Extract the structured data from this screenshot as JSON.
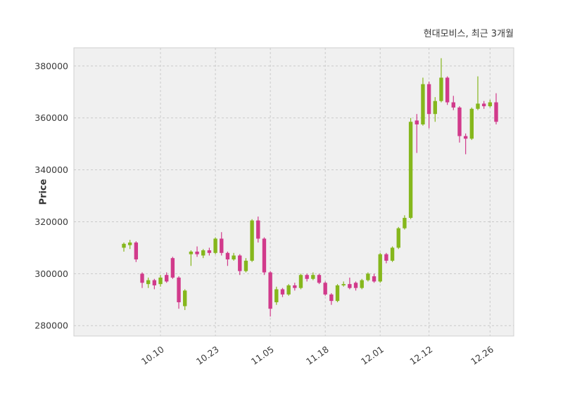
{
  "header": {
    "title": "현대모비스, 최근 3개월"
  },
  "chart_data": {
    "type": "candlestick",
    "title": "현대모비스, 최근 3개월",
    "ylabel": "Price",
    "ylim": [
      276000,
      387000
    ],
    "y_ticks": [
      280000,
      300000,
      320000,
      340000,
      360000,
      380000
    ],
    "x_ticks": [
      {
        "label": "10.10",
        "index": 6
      },
      {
        "label": "10.23",
        "index": 15
      },
      {
        "label": "11.05",
        "index": 24
      },
      {
        "label": "11.18",
        "index": 33
      },
      {
        "label": "12.01",
        "index": 42
      },
      {
        "label": "12.12",
        "index": 50
      },
      {
        "label": "12.26",
        "index": 60
      }
    ],
    "grid": true,
    "legend_position": "top-right",
    "colors": {
      "up": "#85B71C",
      "down": "#D13A8B",
      "panel": "#F0F0F0",
      "grid_line": "#C9C9C9",
      "border": "#CFCFCF",
      "text": "#3A3A3A"
    },
    "candles_columns": [
      "open",
      "high",
      "low",
      "close"
    ],
    "candles": [
      [
        310000,
        312000,
        308500,
        311500
      ],
      [
        311000,
        313000,
        309500,
        312000
      ],
      [
        312000,
        312500,
        304500,
        305500
      ],
      [
        300000,
        300500,
        294500,
        296500
      ],
      [
        296000,
        298500,
        294500,
        297500
      ],
      [
        297500,
        298000,
        294000,
        295500
      ],
      [
        296000,
        299500,
        295000,
        298500
      ],
      [
        299500,
        300500,
        296500,
        297000
      ],
      [
        306000,
        306500,
        298000,
        298500
      ],
      [
        298500,
        299000,
        286500,
        289000
      ],
      [
        287500,
        294000,
        286000,
        293500
      ],
      [
        307500,
        309000,
        303000,
        308500
      ],
      [
        308500,
        310500,
        306500,
        307500
      ],
      [
        307000,
        309500,
        306000,
        309000
      ],
      [
        309000,
        310000,
        307000,
        308000
      ],
      [
        308000,
        314000,
        307500,
        313500
      ],
      [
        313500,
        316000,
        307000,
        308000
      ],
      [
        308000,
        308500,
        303000,
        305500
      ],
      [
        305500,
        308000,
        305000,
        307000
      ],
      [
        307000,
        307500,
        299500,
        301000
      ],
      [
        301000,
        306000,
        300500,
        305000
      ],
      [
        305000,
        321000,
        304500,
        320500
      ],
      [
        320500,
        322000,
        312000,
        313500
      ],
      [
        313500,
        314000,
        299500,
        300500
      ],
      [
        300500,
        301000,
        283500,
        286500
      ],
      [
        289000,
        295000,
        288000,
        294000
      ],
      [
        294000,
        294500,
        291000,
        292000
      ],
      [
        292000,
        296000,
        291500,
        295500
      ],
      [
        295500,
        296500,
        293500,
        294500
      ],
      [
        294500,
        300000,
        294000,
        299500
      ],
      [
        299500,
        300000,
        297000,
        298000
      ],
      [
        298000,
        300500,
        297500,
        299500
      ],
      [
        299500,
        300000,
        296000,
        296500
      ],
      [
        296500,
        297000,
        291500,
        292000
      ],
      [
        292000,
        292500,
        288000,
        289500
      ],
      [
        289500,
        296000,
        289000,
        295500
      ],
      [
        295500,
        297000,
        295000,
        296000
      ],
      [
        296000,
        298500,
        294000,
        294500
      ],
      [
        296500,
        297000,
        293500,
        294500
      ],
      [
        294500,
        298000,
        294000,
        297500
      ],
      [
        297500,
        300500,
        297000,
        300000
      ],
      [
        299000,
        300000,
        296500,
        297000
      ],
      [
        297000,
        308000,
        296500,
        307500
      ],
      [
        307500,
        308000,
        304000,
        305000
      ],
      [
        305000,
        310500,
        304500,
        310000
      ],
      [
        310000,
        318000,
        309500,
        317500
      ],
      [
        317500,
        322500,
        317000,
        321500
      ],
      [
        321500,
        360000,
        321000,
        358500
      ],
      [
        359000,
        361500,
        346500,
        357500
      ],
      [
        357500,
        375500,
        357000,
        373000
      ],
      [
        373000,
        374000,
        356000,
        361500
      ],
      [
        361500,
        368000,
        358500,
        366500
      ],
      [
        366500,
        383000,
        366000,
        375500
      ],
      [
        375500,
        376000,
        365000,
        366000
      ],
      [
        366000,
        368500,
        363000,
        364000
      ],
      [
        364000,
        364500,
        350500,
        353000
      ],
      [
        353000,
        354000,
        346000,
        352000
      ],
      [
        352000,
        364000,
        351500,
        363500
      ],
      [
        363500,
        376000,
        363000,
        365500
      ],
      [
        365500,
        366500,
        363500,
        364500
      ],
      [
        364500,
        367000,
        364000,
        366000
      ],
      [
        366000,
        369500,
        357500,
        358500
      ]
    ]
  }
}
